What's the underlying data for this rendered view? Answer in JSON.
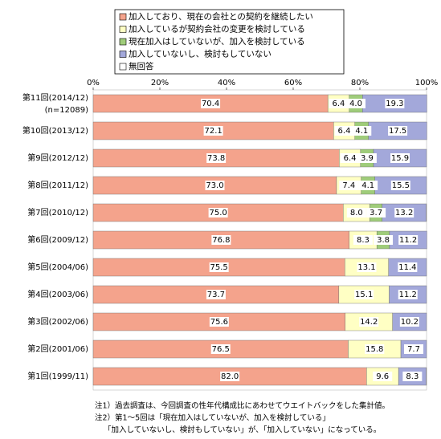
{
  "chart_data": {
    "type": "stacked-bar-horizontal",
    "categories": [
      "第11回(2014/12)",
      "第10回(2013/12)",
      "第9回(2012/12)",
      "第8回(2011/12)",
      "第7回(2010/12)",
      "第6回(2009/12)",
      "第5回(2004/06)",
      "第4回(2003/06)",
      "第3回(2002/06)",
      "第2回(2001/06)",
      "第1回(1999/11)"
    ],
    "sample_size_note": "(n=12089)",
    "series": [
      {
        "name": "加入しており、現在の会社との契約を継続したい",
        "color": "#f4a38c",
        "values": [
          70.4,
          72.1,
          73.8,
          73.0,
          75.0,
          76.8,
          75.5,
          73.7,
          75.6,
          76.5,
          82.0
        ],
        "value_labels": [
          "70.4",
          "72.1",
          "73.8",
          "73.0",
          "75.0",
          "76.8",
          "75.5",
          "73.7",
          "75.6",
          "76.5",
          "82.0"
        ]
      },
      {
        "name": "加入しているが契約会社の変更を検討している",
        "color": "#ffffc4",
        "values": [
          6.4,
          6.4,
          6.4,
          7.4,
          8.0,
          8.3,
          13.1,
          15.1,
          14.2,
          15.8,
          9.6
        ],
        "value_labels": [
          "6.4",
          "6.4",
          "6.4",
          "7.4",
          "8.0",
          "8.3",
          "13.1",
          "15.1",
          "14.2",
          "15.8",
          "9.6"
        ]
      },
      {
        "name": "現在加入はしていないが、加入を検討している",
        "color": "#9fcc7a",
        "values": [
          4.0,
          4.1,
          3.9,
          4.1,
          3.7,
          3.8,
          null,
          null,
          null,
          null,
          null
        ],
        "value_labels": [
          "4.0",
          "4.1",
          "3.9",
          "4.1",
          "3.7",
          "3.8",
          null,
          null,
          null,
          null,
          null
        ]
      },
      {
        "name": "加入していないし、検討もしていない",
        "color": "#a3a8da",
        "values": [
          19.3,
          17.5,
          15.9,
          15.5,
          13.2,
          11.2,
          11.4,
          11.2,
          10.2,
          7.7,
          8.3
        ],
        "value_labels": [
          "19.3",
          "17.5",
          "15.9",
          "15.5",
          "13.2",
          "11.2",
          "11.4",
          "11.2",
          "10.2",
          "7.7",
          "8.3"
        ]
      },
      {
        "name": "無回答",
        "color": "#ffffff",
        "values": [
          0,
          0,
          0,
          0,
          0.1,
          0,
          0,
          0,
          0,
          0,
          0.1
        ]
      }
    ],
    "xlim": [
      0,
      100
    ],
    "xticks": [
      {
        "value": 0,
        "label": "0%"
      },
      {
        "value": 20,
        "label": "20%"
      },
      {
        "value": 40,
        "label": "40%"
      },
      {
        "value": 60,
        "label": "60%"
      },
      {
        "value": 80,
        "label": "80%"
      },
      {
        "value": 100,
        "label": "100%"
      }
    ],
    "grid": false,
    "notes": [
      "注1）過去調査は、今回調査の性年代構成比にあわせてウエイトバックをした集計値。",
      "注2）第1～5回は「現在加入はしていないが、加入を検討している」",
      "「加入していないし、検討もしていない」が、「加入していない」になっている。"
    ]
  }
}
